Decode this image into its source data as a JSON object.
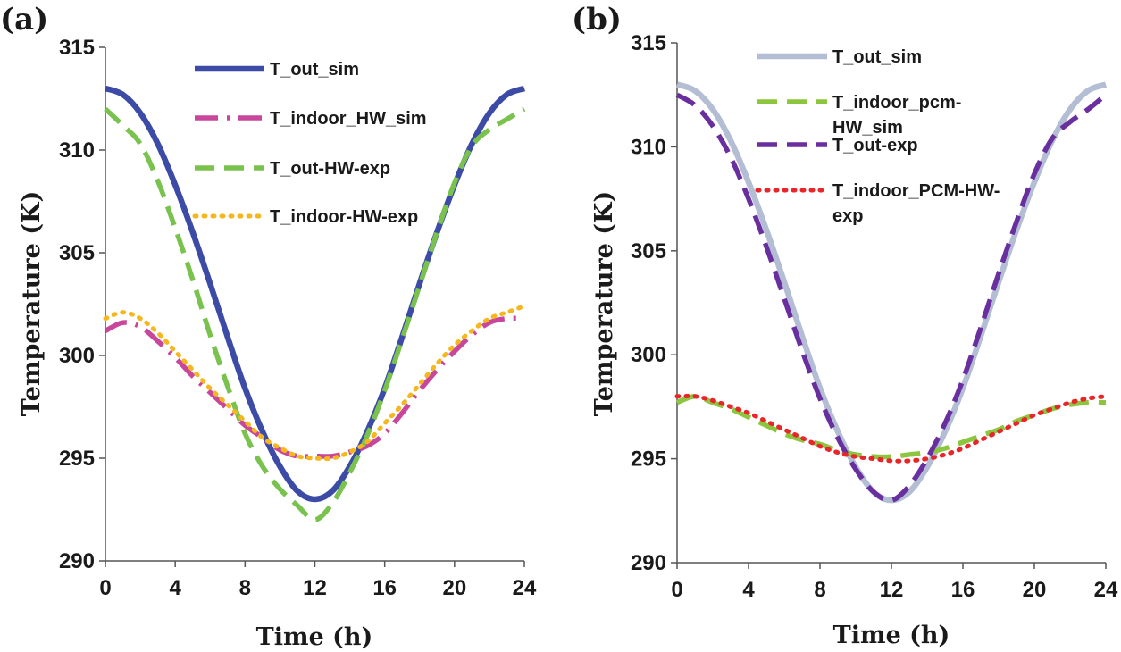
{
  "chart_data": [
    {
      "panel_label": "(a)",
      "type": "line",
      "xlabel": "Time (h)",
      "ylabel": "Temperature (K)",
      "xlim": [
        0,
        24
      ],
      "ylim": [
        290,
        315
      ],
      "xticks": [
        0,
        4,
        8,
        12,
        16,
        20,
        24
      ],
      "xtick_labels": [
        "0",
        "4",
        "8",
        "12",
        "16",
        "20",
        "24"
      ],
      "yticks": [
        290,
        295,
        300,
        305,
        310,
        315
      ],
      "ytick_labels": [
        "290",
        "295",
        "300",
        "305",
        "310",
        "315"
      ],
      "legend_position": "top-right",
      "series": [
        {
          "name": "T_out_sim",
          "legend_lines": [
            "T_out_sim"
          ],
          "style": "solid",
          "color": "#3b4ba6",
          "x": [
            0,
            1,
            2,
            3,
            4,
            5,
            6,
            7,
            8,
            9,
            10,
            11,
            12,
            13,
            14,
            15,
            16,
            17,
            18,
            19,
            20,
            21,
            22,
            23,
            24
          ],
          "y": [
            313.0,
            312.7,
            311.8,
            310.3,
            308.3,
            306.0,
            303.5,
            300.9,
            298.4,
            296.3,
            294.6,
            293.4,
            293.0,
            293.4,
            294.6,
            296.3,
            298.4,
            300.9,
            303.5,
            306.0,
            308.3,
            310.3,
            311.8,
            312.7,
            313.0
          ]
        },
        {
          "name": "T_indoor_HW_sim",
          "legend_lines": [
            "T_indoor_HW_sim"
          ],
          "style": "dashdot",
          "color": "#c8479c",
          "x": [
            0,
            1,
            2,
            3,
            4,
            5,
            6,
            7,
            8,
            9,
            10,
            11,
            12,
            13,
            14,
            15,
            16,
            17,
            18,
            19,
            20,
            21,
            22,
            23,
            24
          ],
          "y": [
            301.2,
            301.6,
            301.4,
            300.7,
            299.9,
            299.0,
            298.2,
            297.4,
            296.6,
            296.0,
            295.4,
            295.1,
            295.1,
            295.1,
            295.3,
            295.6,
            296.2,
            297.2,
            298.3,
            299.3,
            300.2,
            301.0,
            301.6,
            301.8,
            301.8
          ]
        },
        {
          "name": "T_out-HW-exp",
          "legend_lines": [
            "T_out-HW-exp"
          ],
          "style": "dashed",
          "color": "#79c24e",
          "x": [
            0,
            1,
            2,
            3,
            4,
            5,
            6,
            7,
            8,
            9,
            10,
            11,
            12,
            13,
            14,
            15,
            16,
            17,
            18,
            19,
            20,
            21,
            22,
            23,
            24
          ],
          "y": [
            312.0,
            311.2,
            310.3,
            308.5,
            306.2,
            303.7,
            301.0,
            298.5,
            296.2,
            294.6,
            293.5,
            292.7,
            292.0,
            292.8,
            294.3,
            296.1,
            298.3,
            300.8,
            303.4,
            306.0,
            308.4,
            310.2,
            311.0,
            311.5,
            312.0
          ]
        },
        {
          "name": "T_indoor-HW-exp",
          "legend_lines": [
            "T_indoor-HW-exp"
          ],
          "style": "dotted",
          "color": "#f5b71e",
          "x": [
            0,
            1,
            2,
            3,
            4,
            5,
            6,
            7,
            8,
            9,
            10,
            11,
            12,
            13,
            14,
            15,
            16,
            17,
            18,
            19,
            20,
            21,
            22,
            23,
            24
          ],
          "y": [
            301.8,
            302.1,
            301.8,
            301.1,
            300.2,
            299.3,
            298.4,
            297.6,
            296.8,
            296.0,
            295.5,
            295.1,
            295.0,
            295.0,
            295.3,
            295.8,
            296.7,
            297.6,
            298.6,
            299.6,
            300.5,
            301.2,
            301.8,
            302.1,
            302.4
          ]
        }
      ]
    },
    {
      "panel_label": "(b)",
      "type": "line",
      "xlabel": "Time (h)",
      "ylabel": "Temperature (K)",
      "xlim": [
        0,
        24
      ],
      "ylim": [
        290,
        315
      ],
      "xticks": [
        0,
        4,
        8,
        12,
        16,
        20,
        24
      ],
      "xtick_labels": [
        "0",
        "4",
        "8",
        "12",
        "16",
        "20",
        "24"
      ],
      "yticks": [
        290,
        295,
        300,
        305,
        310,
        315
      ],
      "ytick_labels": [
        "290",
        "295",
        "300",
        "305",
        "310",
        "315"
      ],
      "legend_position": "top-right",
      "series": [
        {
          "name": "T_out_sim",
          "legend_lines": [
            "T_out_sim"
          ],
          "style": "solid",
          "color": "#b3bdd3",
          "x": [
            0,
            1,
            2,
            3,
            4,
            5,
            6,
            7,
            8,
            9,
            10,
            11,
            12,
            13,
            14,
            15,
            16,
            17,
            18,
            19,
            20,
            21,
            22,
            23,
            24
          ],
          "y": [
            313.0,
            312.7,
            311.8,
            310.3,
            308.3,
            306.0,
            303.5,
            300.9,
            298.4,
            296.3,
            294.6,
            293.4,
            293.0,
            293.4,
            294.6,
            296.3,
            298.4,
            300.9,
            303.5,
            306.0,
            308.3,
            310.3,
            311.8,
            312.7,
            313.0
          ]
        },
        {
          "name": "T_indoor_pcm-HW_sim",
          "legend_lines": [
            "T_indoor_pcm-",
            "HW_sim"
          ],
          "style": "dashed",
          "color": "#8cc63f",
          "x": [
            0,
            1,
            2,
            3,
            4,
            5,
            6,
            7,
            8,
            9,
            10,
            11,
            12,
            13,
            14,
            15,
            16,
            17,
            18,
            19,
            20,
            21,
            22,
            23,
            24
          ],
          "y": [
            297.7,
            298.0,
            297.7,
            297.4,
            297.0,
            296.6,
            296.2,
            295.9,
            295.7,
            295.4,
            295.2,
            295.1,
            295.1,
            295.2,
            295.3,
            295.5,
            295.8,
            296.1,
            296.4,
            296.8,
            297.1,
            297.4,
            297.6,
            297.7,
            297.7
          ]
        },
        {
          "name": "T_out-exp",
          "legend_lines": [
            "T_out-exp"
          ],
          "style": "dashed",
          "color": "#6a2f9e",
          "x": [
            0,
            1,
            2,
            3,
            4,
            5,
            6,
            7,
            8,
            9,
            10,
            11,
            12,
            13,
            14,
            15,
            16,
            17,
            18,
            19,
            20,
            21,
            22,
            23,
            24
          ],
          "y": [
            312.5,
            312.0,
            311.0,
            309.5,
            307.5,
            305.2,
            302.7,
            300.2,
            297.9,
            296.0,
            294.5,
            293.4,
            293.0,
            293.7,
            295.0,
            296.7,
            298.8,
            301.3,
            303.9,
            306.4,
            308.7,
            310.4,
            311.2,
            311.8,
            312.5
          ]
        },
        {
          "name": "T_indoor_PCM-HW-exp",
          "legend_lines": [
            "T_indoor_PCM-HW-",
            "exp"
          ],
          "style": "dotted",
          "color": "#e8262a",
          "x": [
            0,
            1,
            2,
            3,
            4,
            5,
            6,
            7,
            8,
            9,
            10,
            11,
            12,
            13,
            14,
            15,
            16,
            17,
            18,
            19,
            20,
            21,
            22,
            23,
            24
          ],
          "y": [
            298.0,
            298.0,
            297.8,
            297.5,
            297.2,
            296.8,
            296.4,
            296.0,
            295.6,
            295.3,
            295.1,
            295.0,
            294.9,
            294.9,
            295.0,
            295.2,
            295.5,
            295.9,
            296.3,
            296.7,
            297.1,
            297.4,
            297.7,
            297.9,
            298.0
          ]
        }
      ]
    }
  ]
}
